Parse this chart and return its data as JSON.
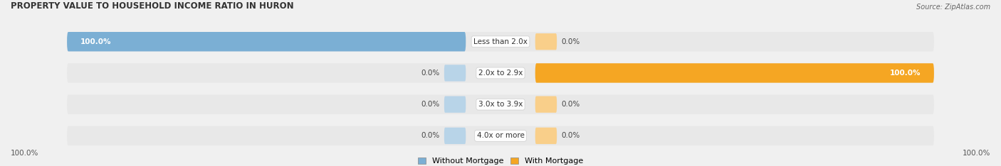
{
  "title": "PROPERTY VALUE TO HOUSEHOLD INCOME RATIO IN HURON",
  "source": "Source: ZipAtlas.com",
  "categories": [
    "Less than 2.0x",
    "2.0x to 2.9x",
    "3.0x to 3.9x",
    "4.0x or more"
  ],
  "without_mortgage": [
    100.0,
    0.0,
    0.0,
    0.0
  ],
  "with_mortgage": [
    0.0,
    100.0,
    0.0,
    0.0
  ],
  "color_without": "#7bafd4",
  "color_with": "#f5a623",
  "color_without_light": "#b8d4e8",
  "color_with_light": "#f9cf8a",
  "bar_bg": "#e8e8e8",
  "bar_bg_dark": "#dcdcdc",
  "figsize": [
    14.06,
    2.34
  ],
  "dpi": 100,
  "title_fontsize": 8.5,
  "source_fontsize": 7.0,
  "label_fontsize": 7.5,
  "legend_fontsize": 8.0,
  "cat_fontsize": 7.5
}
